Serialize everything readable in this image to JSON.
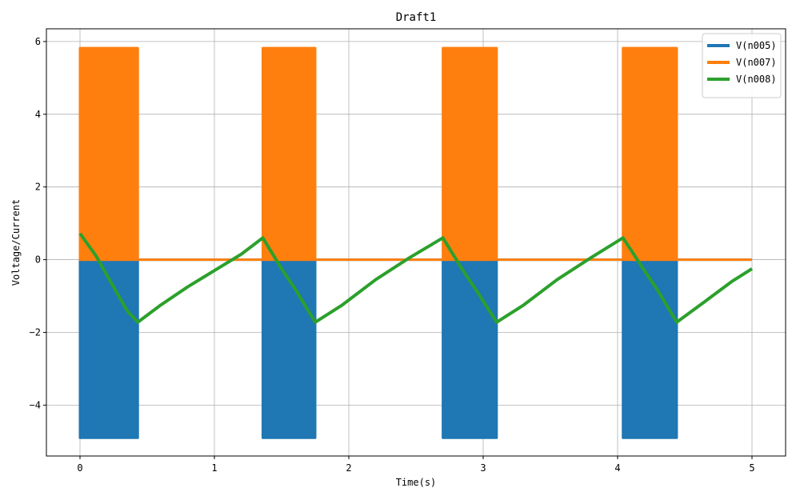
{
  "chart_data": {
    "type": "line",
    "title": "Draft1",
    "xlabel": "Time(s)",
    "ylabel": "Voltage/Current",
    "xlim": [
      -0.25,
      5.25
    ],
    "ylim": [
      -5.4,
      6.35
    ],
    "xticks": [
      0,
      1,
      2,
      3,
      4,
      5
    ],
    "yticks": [
      -4,
      -2,
      0,
      2,
      4,
      6
    ],
    "grid": true,
    "legend_position": "top-right",
    "series": [
      {
        "name": "V(n005)",
        "color": "#1f77b4",
        "style": "dense-oscillation-bursts",
        "baseline": 0,
        "min": -4.9,
        "max": 0,
        "bursts": [
          [
            0,
            0.43
          ],
          [
            1.36,
            1.75
          ],
          [
            2.7,
            3.1
          ],
          [
            4.04,
            4.44
          ]
        ]
      },
      {
        "name": "V(n007)",
        "color": "#ff7f0e",
        "style": "dense-oscillation-bursts",
        "baseline": 0,
        "min": 0,
        "max": 5.82,
        "bursts": [
          [
            0,
            0.43
          ],
          [
            1.36,
            1.75
          ],
          [
            2.7,
            3.1
          ],
          [
            4.04,
            4.44
          ]
        ]
      },
      {
        "name": "V(n008)",
        "color": "#2ca02c",
        "x": [
          0,
          0.12,
          0.25,
          0.35,
          0.43,
          0.6,
          0.8,
          1.0,
          1.2,
          1.36,
          1.5,
          1.6,
          1.75,
          1.95,
          2.2,
          2.45,
          2.7,
          2.85,
          2.95,
          3.1,
          3.3,
          3.55,
          3.8,
          4.04,
          4.2,
          4.3,
          4.44,
          4.65,
          4.85,
          5.0
        ],
        "y": [
          0.72,
          0.1,
          -0.75,
          -1.4,
          -1.72,
          -1.25,
          -0.75,
          -0.3,
          0.15,
          0.6,
          -0.25,
          -0.8,
          -1.72,
          -1.25,
          -0.55,
          0.05,
          0.6,
          -0.3,
          -0.85,
          -1.72,
          -1.25,
          -0.55,
          0.05,
          0.6,
          -0.3,
          -0.85,
          -1.72,
          -1.15,
          -0.6,
          -0.25
        ]
      }
    ]
  }
}
